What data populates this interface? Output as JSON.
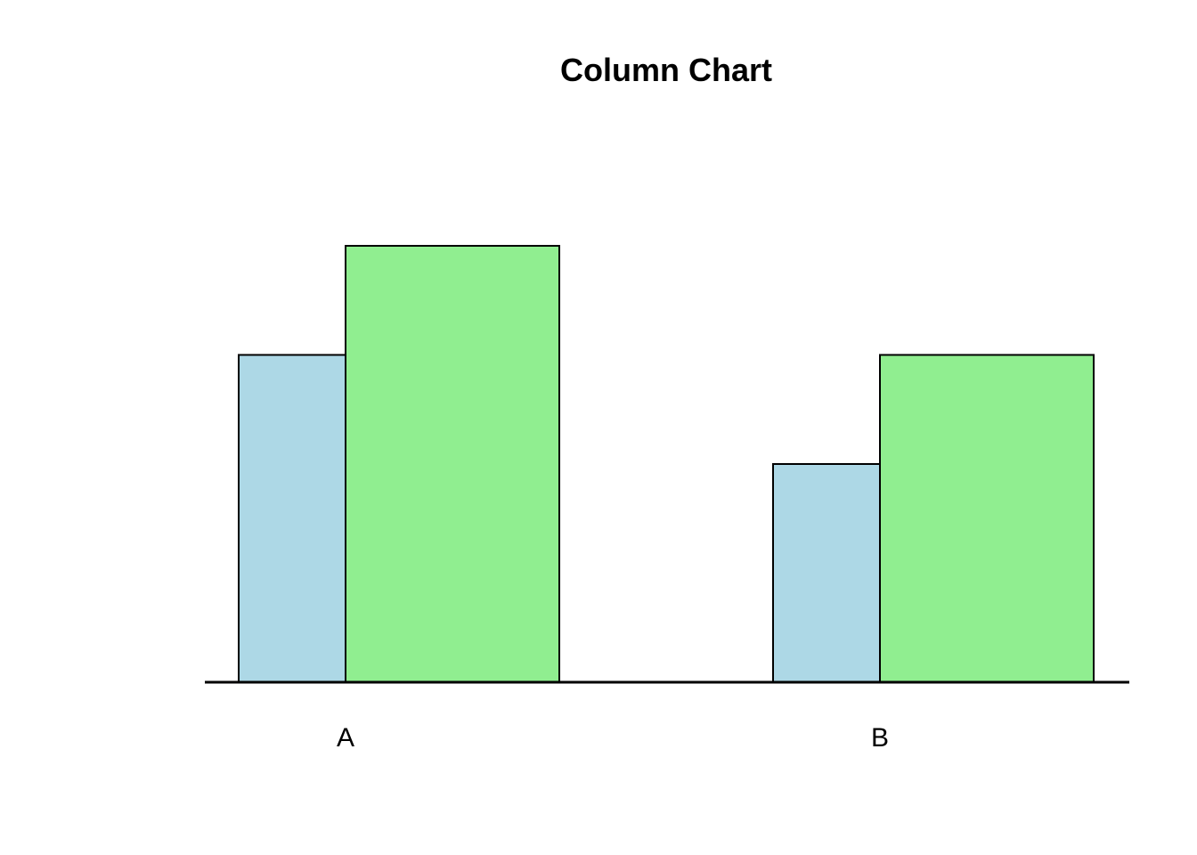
{
  "chart_data": {
    "type": "bar",
    "title": "Column Chart",
    "categories": [
      "A",
      "B"
    ],
    "series": [
      {
        "values": [
          3,
          2
        ],
        "color": "#ADD8E6"
      },
      {
        "values": [
          4,
          3
        ],
        "color": "#90EE90"
      }
    ],
    "ylim": [
      0,
      4
    ],
    "grid": false,
    "legend": "none",
    "border_color": "#000000"
  }
}
